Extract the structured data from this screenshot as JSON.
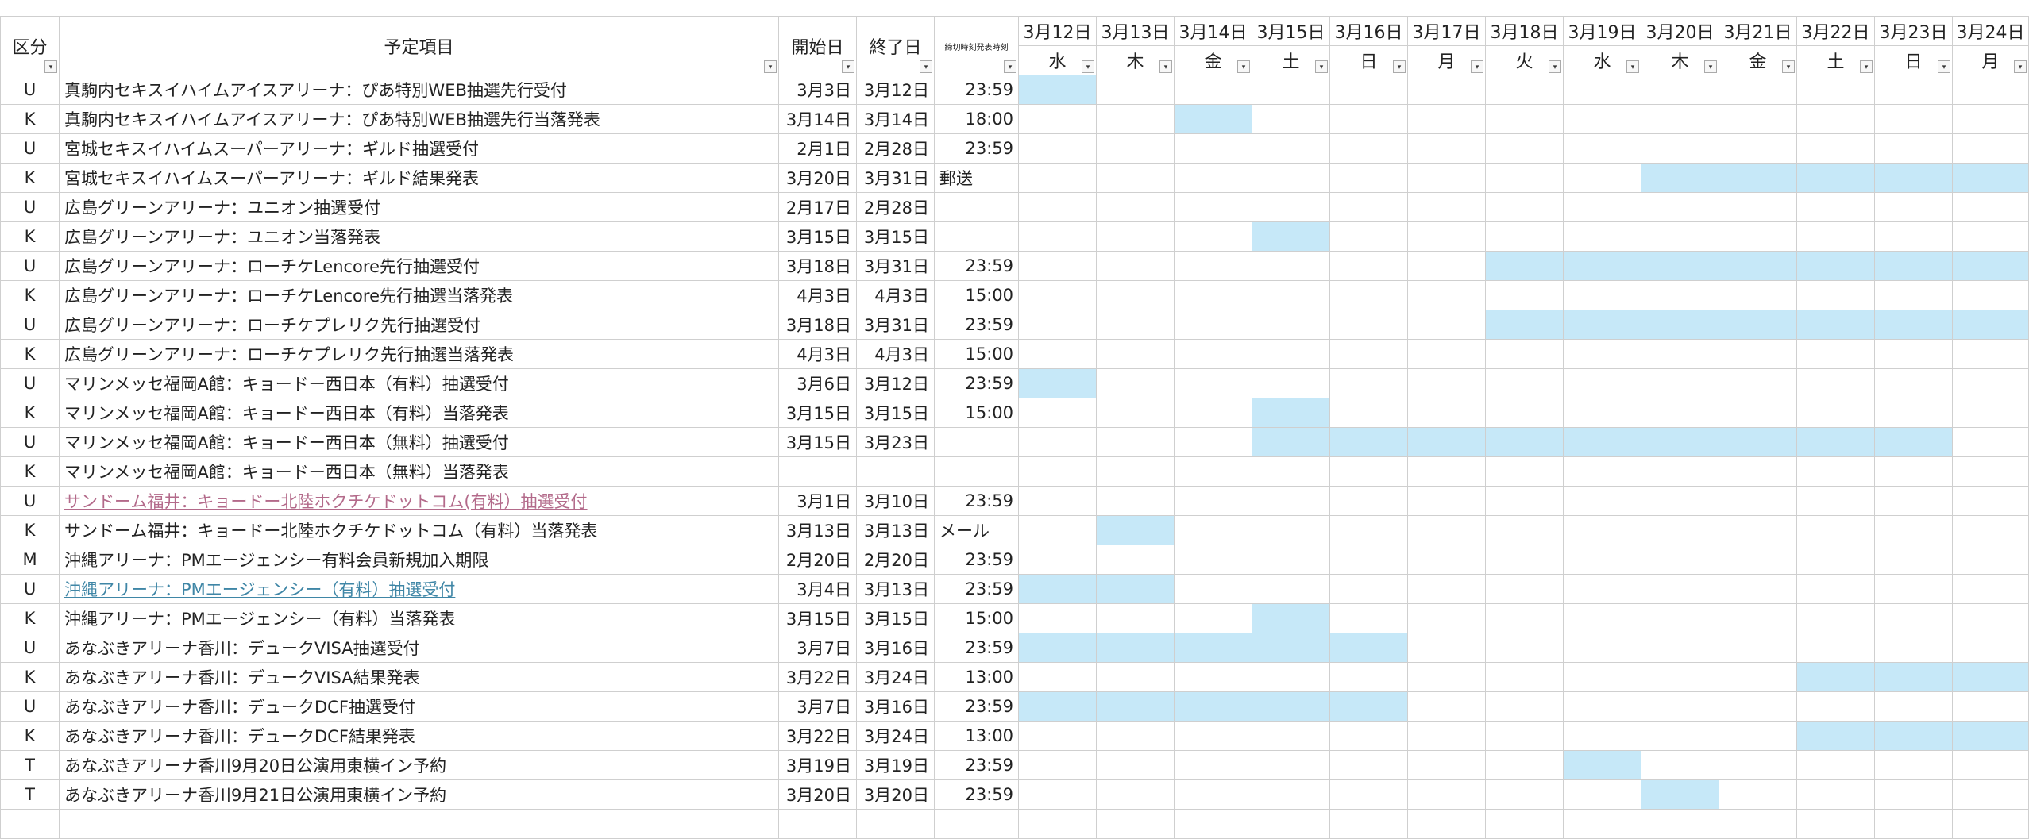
{
  "colors": {
    "fill": "#c6e8f8",
    "link_pink": "#b36a8a",
    "link_teal": "#3f86a6"
  },
  "headers": {
    "kubun": "区分",
    "item": "予定項目",
    "start": "開始日",
    "end": "終了日",
    "deadline": "締切時刻発表時刻"
  },
  "dates": [
    "3月12日",
    "3月13日",
    "3月14日",
    "3月15日",
    "3月16日",
    "3月17日",
    "3月18日",
    "3月19日",
    "3月20日",
    "3月21日",
    "3月22日",
    "3月23日",
    "3月24日"
  ],
  "weekdays": [
    "水",
    "木",
    "金",
    "土",
    "日",
    "月",
    "火",
    "水",
    "木",
    "金",
    "土",
    "日",
    "月"
  ],
  "rows": [
    {
      "k": "U",
      "item": "真駒内セキスイハイムアイスアリーナ：ぴあ特別WEB抽選先行受付",
      "start": "3月3日",
      "end": "3月12日",
      "time": "23:59",
      "fill": [
        0
      ]
    },
    {
      "k": "K",
      "item": "真駒内セキスイハイムアイスアリーナ：ぴあ特別WEB抽選先行当落発表",
      "start": "3月14日",
      "end": "3月14日",
      "time": "18:00",
      "fill": [
        2
      ]
    },
    {
      "k": "U",
      "item": "宮城セキスイハイムスーパーアリーナ：ギルド抽選受付",
      "start": "2月1日",
      "end": "2月28日",
      "time": "23:59",
      "fill": []
    },
    {
      "k": "K",
      "item": "宮城セキスイハイムスーパーアリーナ：ギルド結果発表",
      "start": "3月20日",
      "end": "3月31日",
      "time": "郵送",
      "fill": [
        8,
        9,
        10,
        11,
        12
      ]
    },
    {
      "k": "U",
      "item": "広島グリーンアリーナ：ユニオン抽選受付",
      "start": "2月17日",
      "end": "2月28日",
      "time": "",
      "fill": []
    },
    {
      "k": "K",
      "item": "広島グリーンアリーナ：ユニオン当落発表",
      "start": "3月15日",
      "end": "3月15日",
      "time": "",
      "fill": [
        3
      ]
    },
    {
      "k": "U",
      "item": "広島グリーンアリーナ：ローチケLencore先行抽選受付",
      "start": "3月18日",
      "end": "3月31日",
      "time": "23:59",
      "fill": [
        6,
        7,
        8,
        9,
        10,
        11,
        12
      ]
    },
    {
      "k": "K",
      "item": "広島グリーンアリーナ：ローチケLencore先行抽選当落発表",
      "start": "4月3日",
      "end": "4月3日",
      "time": "15:00",
      "fill": []
    },
    {
      "k": "U",
      "item": "広島グリーンアリーナ：ローチケプレリク先行抽選受付",
      "start": "3月18日",
      "end": "3月31日",
      "time": "23:59",
      "fill": [
        6,
        7,
        8,
        9,
        10,
        11,
        12
      ]
    },
    {
      "k": "K",
      "item": "広島グリーンアリーナ：ローチケプレリク先行抽選当落発表",
      "start": "4月3日",
      "end": "4月3日",
      "time": "15:00",
      "fill": []
    },
    {
      "k": "U",
      "item": "マリンメッセ福岡A館：キョードー西日本（有料）抽選受付",
      "start": "3月6日",
      "end": "3月12日",
      "time": "23:59",
      "fill": [
        0
      ]
    },
    {
      "k": "K",
      "item": "マリンメッセ福岡A館：キョードー西日本（有料）当落発表",
      "start": "3月15日",
      "end": "3月15日",
      "time": "15:00",
      "fill": [
        3
      ]
    },
    {
      "k": "U",
      "item": "マリンメッセ福岡A館：キョードー西日本（無料）抽選受付",
      "start": "3月15日",
      "end": "3月23日",
      "time": "",
      "fill": [
        3,
        4,
        5,
        6,
        7,
        8,
        9,
        10,
        11
      ]
    },
    {
      "k": "K",
      "item": "マリンメッセ福岡A館：キョードー西日本（無料）当落発表",
      "start": "",
      "end": "",
      "time": "",
      "fill": []
    },
    {
      "k": "U",
      "item": "サンドーム福井：キョードー北陸ホクチケドットコム(有料）抽選受付",
      "start": "3月1日",
      "end": "3月10日",
      "time": "23:59",
      "fill": [],
      "link": "pink"
    },
    {
      "k": "K",
      "item": "サンドーム福井：キョードー北陸ホクチケドットコム（有料）当落発表",
      "start": "3月13日",
      "end": "3月13日",
      "time": "メール",
      "fill": [
        1
      ]
    },
    {
      "k": "M",
      "item": "沖縄アリーナ：PMエージェンシー有料会員新規加入期限",
      "start": "2月20日",
      "end": "2月20日",
      "time": "23:59",
      "fill": []
    },
    {
      "k": "U",
      "item": "沖縄アリーナ：PMエージェンシー（有料）抽選受付",
      "start": "3月4日",
      "end": "3月13日",
      "time": "23:59",
      "fill": [
        0,
        1
      ],
      "link": "teal"
    },
    {
      "k": "K",
      "item": "沖縄アリーナ：PMエージェンシー（有料）当落発表",
      "start": "3月15日",
      "end": "3月15日",
      "time": "15:00",
      "fill": [
        3
      ]
    },
    {
      "k": "U",
      "item": "あなぶきアリーナ香川：デュークVISA抽選受付",
      "start": "3月7日",
      "end": "3月16日",
      "time": "23:59",
      "fill": [
        0,
        1,
        2,
        3,
        4
      ]
    },
    {
      "k": "K",
      "item": "あなぶきアリーナ香川：デュークVISA結果発表",
      "start": "3月22日",
      "end": "3月24日",
      "time": "13:00",
      "fill": [
        10,
        11,
        12
      ]
    },
    {
      "k": "U",
      "item": "あなぶきアリーナ香川：デュークDCF抽選受付",
      "start": "3月7日",
      "end": "3月16日",
      "time": "23:59",
      "fill": [
        0,
        1,
        2,
        3,
        4
      ]
    },
    {
      "k": "K",
      "item": "あなぶきアリーナ香川：デュークDCF結果発表",
      "start": "3月22日",
      "end": "3月24日",
      "time": "13:00",
      "fill": [
        10,
        11,
        12
      ]
    },
    {
      "k": "T",
      "item": "あなぶきアリーナ香川9月20日公演用東横イン予約",
      "start": "3月19日",
      "end": "3月19日",
      "time": "23:59",
      "fill": [
        7
      ]
    },
    {
      "k": "T",
      "item": "あなぶきアリーナ香川9月21日公演用東横イン予約",
      "start": "3月20日",
      "end": "3月20日",
      "time": "23:59",
      "fill": [
        8
      ]
    }
  ]
}
